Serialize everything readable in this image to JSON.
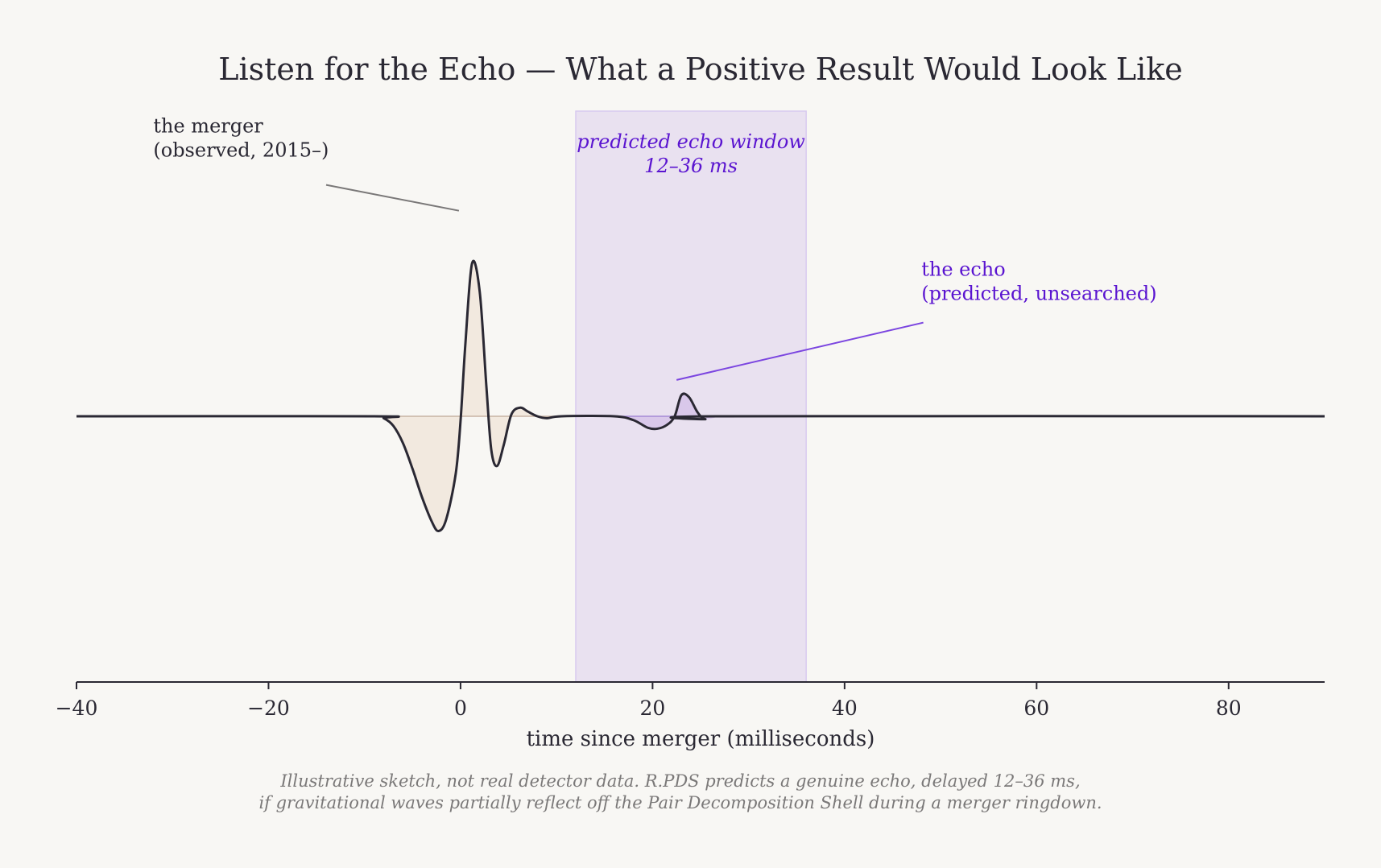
{
  "chart_data": {
    "type": "line",
    "title": "Listen for the Echo — What a Positive Result Would Look Like",
    "xlabel": "time since merger (milliseconds)",
    "ylabel": "",
    "xlim": [
      -40,
      90
    ],
    "ylim": [
      -1.45,
      1.5
    ],
    "x_ticks": [
      -40,
      -20,
      0,
      20,
      40,
      60,
      80
    ],
    "x_tick_labels": [
      "−40",
      "−20",
      "0",
      "20",
      "40",
      "60",
      "80"
    ],
    "grid": false,
    "series": [
      {
        "role": "waveform",
        "color": "#2a2833",
        "points": [
          [
            -40,
            0
          ],
          [
            -9,
            0
          ],
          [
            -8,
            -0.02
          ],
          [
            -7,
            -0.1
          ],
          [
            -6,
            -0.28
          ],
          [
            -5,
            -0.55
          ],
          [
            -4,
            -0.85
          ],
          [
            -3,
            -1.1
          ],
          [
            -2.3,
            -1.2
          ],
          [
            -1.5,
            -1.08
          ],
          [
            -0.5,
            -0.6
          ],
          [
            0,
            -0.05
          ],
          [
            0.5,
            0.75
          ],
          [
            1.2,
            1.6
          ],
          [
            2,
            1.3
          ],
          [
            2.7,
            0.3
          ],
          [
            3.2,
            -0.35
          ],
          [
            3.8,
            -0.52
          ],
          [
            4.5,
            -0.3
          ],
          [
            5.3,
            0.02
          ],
          [
            6.2,
            0.09
          ],
          [
            7,
            0.05
          ],
          [
            8,
            0.0
          ],
          [
            9,
            -0.02
          ],
          [
            10.5,
            0.0
          ],
          [
            16,
            0.0
          ],
          [
            18,
            -0.04
          ],
          [
            19.5,
            -0.12
          ],
          [
            20.5,
            -0.13
          ],
          [
            21.5,
            -0.09
          ],
          [
            22.3,
            0.0
          ],
          [
            23,
            0.22
          ],
          [
            23.8,
            0.2
          ],
          [
            24.7,
            0.04
          ],
          [
            25.5,
            -0.03
          ],
          [
            27,
            0.0
          ],
          [
            90,
            0
          ]
        ]
      }
    ],
    "shaded_regions": [
      {
        "x": [
          12,
          36
        ],
        "color": "#e9e1f0",
        "label": "predicted echo window",
        "sublabel": "12–36 ms"
      }
    ],
    "area_fills": {
      "merger_color": "#f2e9df",
      "echo_color": "#d9c8ea"
    },
    "annotations": [
      {
        "lines": [
          "the merger",
          "(observed, 2015–)"
        ],
        "line_color": "#7a7878",
        "points_to": [
          0,
          2.15
        ],
        "text_at": [
          -32,
          2.97
        ]
      },
      {
        "lines": [
          "the echo",
          "(predicted, unsearched)"
        ],
        "line_color": "#7b45e0",
        "points_to": [
          22.5,
          0.38
        ],
        "text_at": [
          48,
          1.47
        ]
      }
    ],
    "caption": [
      "Illustrative sketch, not real detector data. R.PDS predicts a genuine echo, delayed 12–36 ms,",
      "if gravitational waves partially reflect off the Pair Decomposition Shell during a merger ringdown."
    ]
  }
}
